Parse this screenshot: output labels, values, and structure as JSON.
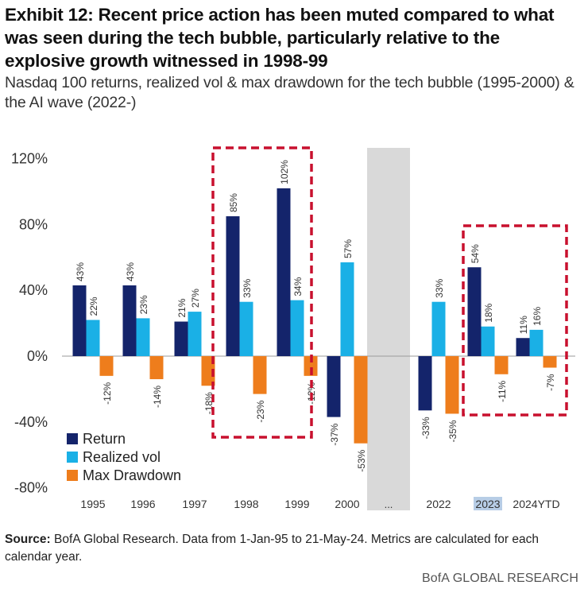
{
  "title": "Exhibit 12: Recent price action has been muted compared to what was seen during the tech bubble, particularly relative to the explosive growth witnessed in 1998-99",
  "subtitle": "Nasdaq 100 returns, realized vol & max drawdown for the tech bubble (1995-2000) & the AI wave (2022-)",
  "source_label": "Source:",
  "source_text": "BofA Global Research. Data from 1-Jan-95 to 21-May-24. Metrics are calculated for each calendar year.",
  "brand": "BofA GLOBAL RESEARCH",
  "colors": {
    "return": "#14246b",
    "vol": "#1ab0e6",
    "drawdown": "#ee7d1c",
    "highlight_box": "#c8102e",
    "gap_band": "#d9d9d9"
  },
  "chart_data": {
    "type": "bar",
    "categories": [
      "1995",
      "1996",
      "1997",
      "1998",
      "1999",
      "2000",
      "...",
      "2022",
      "2023",
      "2024YTD"
    ],
    "series": [
      {
        "name": "Return",
        "values": [
          43,
          43,
          21,
          85,
          102,
          -37,
          null,
          -33,
          54,
          11
        ],
        "labels": [
          "43%",
          "43%",
          "21%",
          "85%",
          "102%",
          "-37%",
          "",
          "-33%",
          "54%",
          "11%"
        ]
      },
      {
        "name": "Realized vol",
        "values": [
          22,
          23,
          27,
          33,
          34,
          57,
          null,
          33,
          18,
          16
        ],
        "labels": [
          "22%",
          "23%",
          "27%",
          "33%",
          "34%",
          "57%",
          "",
          "33%",
          "18%",
          "16%"
        ]
      },
      {
        "name": "Max Drawdown",
        "values": [
          -12,
          -14,
          -18,
          -23,
          -12,
          -53,
          null,
          -35,
          -11,
          -7
        ],
        "labels": [
          "-12%",
          "-14%",
          "-18%",
          "-23%",
          "-12%",
          "-53%",
          "",
          "-35%",
          "-11%",
          "-7%"
        ]
      }
    ],
    "ylim": [
      -80,
      120
    ],
    "yticks": [
      -80,
      -40,
      0,
      40,
      80,
      120
    ],
    "ytick_labels": [
      "-80%",
      "-40%",
      "0%",
      "40%",
      "80%",
      "120%"
    ],
    "highlight_groups": [
      [
        "1998",
        "1999"
      ],
      [
        "2023",
        "2024YTD"
      ]
    ],
    "gap_category": "...",
    "selected_category": "2023",
    "legend": [
      "Return",
      "Realized vol",
      "Max Drawdown"
    ],
    "legend_position": "bottom-left",
    "xlabel": "",
    "ylabel": ""
  }
}
